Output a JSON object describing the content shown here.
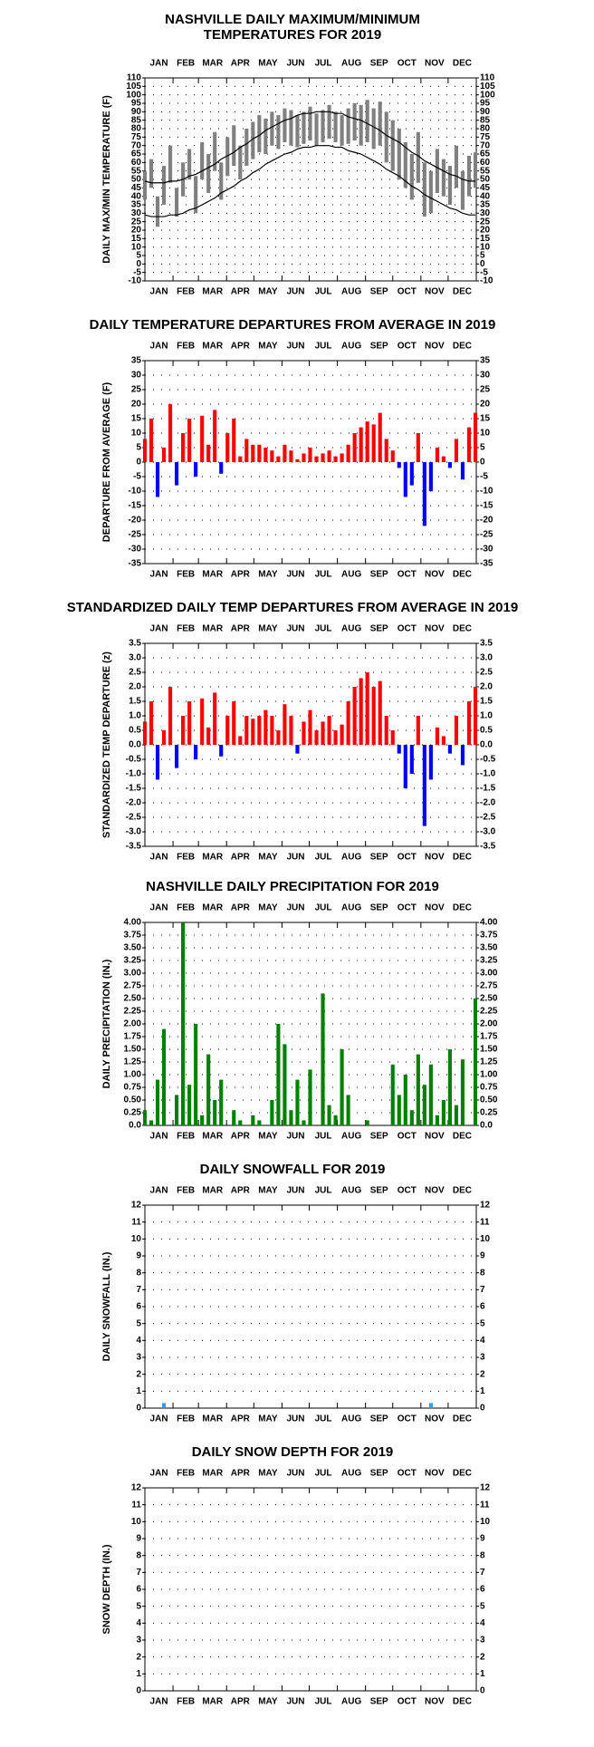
{
  "days": [
    1,
    8,
    15,
    22,
    29,
    36,
    43,
    50,
    57,
    64,
    71,
    78,
    85,
    92,
    99,
    106,
    113,
    120,
    127,
    134,
    141,
    148,
    155,
    162,
    169,
    176,
    183,
    190,
    197,
    204,
    211,
    218,
    225,
    232,
    239,
    246,
    253,
    260,
    267,
    274,
    281,
    288,
    295,
    302,
    309,
    316,
    323,
    330,
    337,
    344,
    351,
    358,
    365
  ],
  "xlim": [
    1,
    366
  ],
  "xticks": [
    1,
    32,
    60,
    91,
    121,
    152,
    182,
    213,
    244,
    274,
    305,
    335,
    366
  ],
  "months": [
    "JAN",
    "FEB",
    "MAR",
    "APR",
    "MAY",
    "JUN",
    "JUL",
    "AUG",
    "SEP",
    "OCT",
    "NOV",
    "DEC"
  ],
  "chart_data": [
    {
      "type": "range",
      "title": [
        "NASHVILLE DAILY MAXIMUM/MINIMUM",
        "TEMPERATURES FOR 2019"
      ],
      "y_label": "DAILY MAX/MIN TEMPERATURE (F)",
      "ylim": [
        -10,
        110
      ],
      "yticks": [
        -10,
        -5,
        0,
        5,
        10,
        15,
        20,
        25,
        30,
        35,
        40,
        45,
        50,
        55,
        60,
        65,
        70,
        75,
        80,
        85,
        90,
        95,
        100,
        105,
        110
      ],
      "grid": true,
      "series": [
        {
          "kind": "range",
          "color": "#808080",
          "values": [
            55,
            62,
            40,
            58,
            70,
            45,
            60,
            68,
            52,
            72,
            65,
            78,
            60,
            75,
            82,
            70,
            80,
            84,
            88,
            86,
            90,
            88,
            92,
            91,
            88,
            90,
            93,
            89,
            91,
            94,
            90,
            88,
            92,
            95,
            94,
            97,
            92,
            96,
            90,
            85,
            80,
            72,
            65,
            78,
            60,
            55,
            68,
            62,
            58,
            70,
            55,
            64,
            66
          ]
        },
        {
          "kind": "range",
          "color": "#808080",
          "values": [
            38,
            45,
            22,
            35,
            48,
            28,
            40,
            50,
            30,
            50,
            42,
            55,
            38,
            52,
            58,
            50,
            58,
            62,
            66,
            65,
            70,
            68,
            72,
            70,
            69,
            71,
            73,
            70,
            72,
            74,
            72,
            70,
            71,
            73,
            70,
            72,
            68,
            70,
            60,
            55,
            50,
            45,
            38,
            48,
            28,
            30,
            42,
            40,
            35,
            45,
            32,
            40,
            45
          ]
        },
        {
          "kind": "line",
          "color": "#000000",
          "values": [
            49,
            48,
            48,
            48,
            49,
            49,
            50,
            52,
            53,
            55,
            57,
            59,
            62,
            64,
            66,
            69,
            71,
            74,
            76,
            79,
            81,
            83,
            85,
            86,
            88,
            89,
            89,
            90,
            90,
            90,
            89,
            89,
            87,
            86,
            85,
            83,
            81,
            79,
            76,
            74,
            72,
            69,
            66,
            64,
            61,
            59,
            57,
            55,
            53,
            52,
            50,
            49,
            49
          ]
        },
        {
          "kind": "line",
          "color": "#000000",
          "values": [
            29,
            28,
            28,
            28,
            29,
            29,
            30,
            32,
            33,
            35,
            37,
            39,
            42,
            44,
            46,
            49,
            51,
            54,
            56,
            59,
            61,
            63,
            65,
            66,
            68,
            69,
            69,
            70,
            70,
            70,
            69,
            69,
            67,
            66,
            65,
            63,
            61,
            59,
            56,
            54,
            52,
            49,
            46,
            44,
            41,
            39,
            37,
            35,
            33,
            32,
            30,
            29,
            29
          ]
        }
      ]
    },
    {
      "type": "bar",
      "title": [
        "DAILY TEMPERATURE DEPARTURES FROM AVERAGE IN 2019"
      ],
      "y_label": "DEPARTURE FROM AVERAGE (F)",
      "ylim": [
        -35,
        35
      ],
      "yticks": [
        -35,
        -30,
        -25,
        -20,
        -15,
        -10,
        -5,
        0,
        5,
        10,
        15,
        20,
        25,
        30,
        35
      ],
      "grid": true,
      "pos_color": "#ff0000",
      "neg_color": "#0000ff",
      "values": [
        8,
        15,
        -12,
        5,
        20,
        -8,
        10,
        15,
        -5,
        16,
        6,
        18,
        -4,
        10,
        15,
        2,
        8,
        6,
        6,
        5,
        4,
        2,
        6,
        4,
        1,
        3,
        5,
        2,
        3,
        4,
        2,
        3,
        6,
        10,
        12,
        14,
        13,
        17,
        8,
        4,
        -2,
        -12,
        -8,
        10,
        -22,
        -10,
        5,
        2,
        -2,
        8,
        -6,
        12,
        17
      ]
    },
    {
      "type": "bar",
      "title": [
        "STANDARDIZED DAILY TEMP DEPARTURES FROM AVERAGE IN 2019"
      ],
      "y_label": "STANDARDIZED TEMP DEPARTURE (z)",
      "ylim": [
        -3.5,
        3.5
      ],
      "yticks": [
        -3.5,
        {
          "value": -3,
          "label": "-3.0"
        },
        -2.5,
        {
          "value": -2,
          "label": "-2.0"
        },
        -1.5,
        {
          "value": -1,
          "label": "-1.0"
        },
        -0.5,
        {
          "value": 0,
          "label": "0.0"
        },
        0.5,
        {
          "value": 1,
          "label": "1.0"
        },
        1.5,
        {
          "value": 2,
          "label": "2.0"
        },
        2.5,
        {
          "value": 3,
          "label": "3.0"
        },
        3.5
      ],
      "grid": true,
      "pos_color": "#ff0000",
      "neg_color": "#0000ff",
      "values": [
        0.8,
        1.5,
        -1.2,
        0.5,
        2.0,
        -0.8,
        1.0,
        1.5,
        -0.5,
        1.6,
        0.6,
        1.8,
        -0.4,
        1.0,
        1.5,
        0.3,
        1.0,
        0.9,
        1.0,
        1.2,
        1.0,
        0.5,
        1.4,
        1.0,
        -0.3,
        0.8,
        1.2,
        0.5,
        0.8,
        1.0,
        0.5,
        0.7,
        1.5,
        2.0,
        2.3,
        2.5,
        2.0,
        2.2,
        1.0,
        0.5,
        -0.3,
        -1.5,
        -1.0,
        1.0,
        -2.8,
        -1.2,
        0.6,
        0.3,
        -0.3,
        1.0,
        -0.7,
        1.5,
        2.0
      ]
    },
    {
      "type": "bar",
      "title": [
        "NASHVILLE DAILY PRECIPITATION FOR 2019"
      ],
      "y_label": "DAILY PRECIPITATION (IN.)",
      "ylim": [
        0,
        4
      ],
      "yticks": [
        {
          "value": 0,
          "label": "0.0"
        },
        0.25,
        {
          "value": 0.5,
          "label": "0.50"
        },
        0.75,
        {
          "value": 1,
          "label": "1.00"
        },
        1.25,
        {
          "value": 1.5,
          "label": "1.50"
        },
        1.75,
        {
          "value": 2,
          "label": "2.00"
        },
        2.25,
        {
          "value": 2.5,
          "label": "2.50"
        },
        2.75,
        {
          "value": 3,
          "label": "3.00"
        },
        3.25,
        {
          "value": 3.5,
          "label": "3.50"
        },
        3.75,
        {
          "value": 4,
          "label": "4.00"
        }
      ],
      "grid": true,
      "pos_color": "#008000",
      "neg_color": "#008000",
      "values": [
        0.3,
        0.1,
        0.9,
        1.9,
        0,
        0.6,
        4.0,
        0.8,
        2.0,
        0.2,
        1.4,
        0.5,
        0.9,
        0,
        0.3,
        0.1,
        0,
        0.2,
        0.1,
        0,
        0.5,
        2.0,
        1.6,
        0.3,
        0.9,
        0.1,
        1.1,
        0,
        2.6,
        0.4,
        0.2,
        1.5,
        0.6,
        0,
        0,
        0.1,
        0,
        0,
        0,
        1.2,
        0.6,
        1.0,
        0.3,
        1.4,
        0.8,
        1.2,
        0.2,
        0.5,
        1.5,
        0.4,
        1.3,
        0,
        2.5
      ]
    },
    {
      "type": "bar",
      "title": [
        "DAILY SNOWFALL FOR 2019"
      ],
      "y_label": "DAILY SNOWFALL (IN.)",
      "ylim": [
        0,
        12
      ],
      "yticks": [
        0,
        1,
        2,
        3,
        4,
        5,
        6,
        7,
        8,
        9,
        10,
        11,
        12
      ],
      "grid": true,
      "pos_color": "#3399ff",
      "neg_color": "#3399ff",
      "values": [
        0,
        0,
        0,
        0.3,
        0,
        0,
        0,
        0,
        0,
        0,
        0,
        0,
        0,
        0,
        0,
        0,
        0,
        0,
        0,
        0,
        0,
        0,
        0,
        0,
        0,
        0,
        0,
        0,
        0,
        0,
        0,
        0,
        0,
        0,
        0,
        0,
        0,
        0,
        0,
        0,
        0,
        0,
        0,
        0,
        0,
        0.3,
        0,
        0,
        0,
        0,
        0,
        0,
        0
      ]
    },
    {
      "type": "bar",
      "title": [
        "DAILY SNOW DEPTH FOR 2019"
      ],
      "y_label": "SNOW DEPTH (IN.)",
      "ylim": [
        0,
        12
      ],
      "yticks": [
        0,
        1,
        2,
        3,
        4,
        5,
        6,
        7,
        8,
        9,
        10,
        11,
        12
      ],
      "grid": true,
      "pos_color": "#3399ff",
      "neg_color": "#3399ff",
      "values": [
        0,
        0,
        0,
        0,
        0,
        0,
        0,
        0,
        0,
        0,
        0,
        0,
        0,
        0,
        0,
        0,
        0,
        0,
        0,
        0,
        0,
        0,
        0,
        0,
        0,
        0,
        0,
        0,
        0,
        0,
        0,
        0,
        0,
        0,
        0,
        0,
        0,
        0,
        0,
        0,
        0,
        0,
        0,
        0,
        0,
        0,
        0,
        0,
        0,
        0,
        0,
        0,
        0
      ]
    }
  ]
}
